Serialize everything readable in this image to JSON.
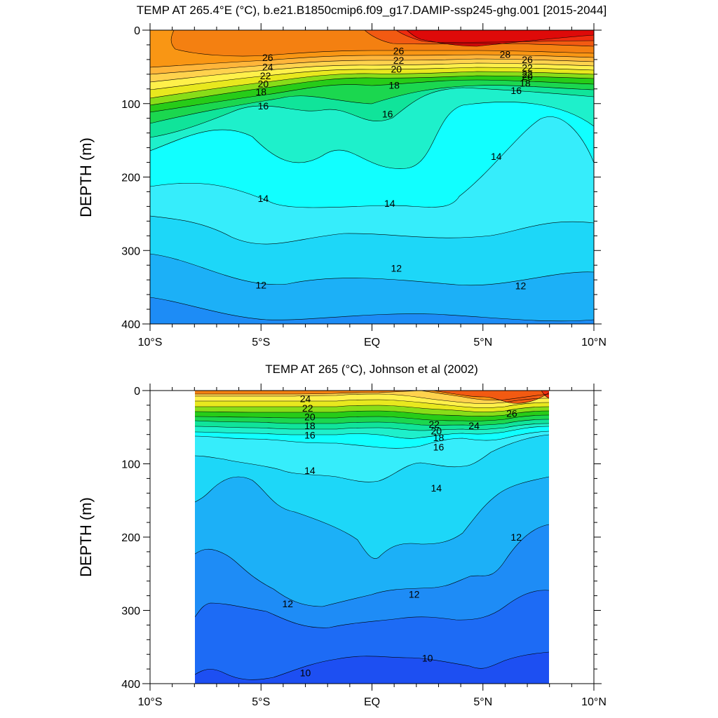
{
  "chart_data": [
    {
      "type": "contour",
      "title": "TEMP AT 265.4°E (°C), b.e21.B1850cmip6.f09_g17.DAMIP-ssp245-ghg.001 [2015-2044]",
      "xlabel": "",
      "ylabel": "DEPTH (m)",
      "xlim": [
        -10,
        10
      ],
      "ylim": [
        400,
        0
      ],
      "x_data_range": [
        -10,
        10
      ],
      "x_ticks": [
        {
          "value": -10,
          "label": "10°S"
        },
        {
          "value": -5,
          "label": "5°S"
        },
        {
          "value": 0,
          "label": "EQ"
        },
        {
          "value": 5,
          "label": "5°N"
        },
        {
          "value": 10,
          "label": "10°N"
        }
      ],
      "y_ticks": [
        {
          "value": 0,
          "label": "0"
        },
        {
          "value": 100,
          "label": "100"
        },
        {
          "value": 200,
          "label": "200"
        },
        {
          "value": 300,
          "label": "300"
        },
        {
          "value": 400,
          "label": "400"
        }
      ],
      "contour_labels": [
        {
          "x": -4.7,
          "y": 37,
          "text": "26"
        },
        {
          "x": -4.7,
          "y": 50,
          "text": "24"
        },
        {
          "x": -4.8,
          "y": 62,
          "text": "22"
        },
        {
          "x": -4.9,
          "y": 73,
          "text": "20"
        },
        {
          "x": -5.0,
          "y": 84,
          "text": "18"
        },
        {
          "x": -4.9,
          "y": 103,
          "text": "16"
        },
        {
          "x": 1.2,
          "y": 28,
          "text": "26"
        },
        {
          "x": 1.2,
          "y": 41,
          "text": "22"
        },
        {
          "x": 1.1,
          "y": 53,
          "text": "20"
        },
        {
          "x": 1.0,
          "y": 75,
          "text": "18"
        },
        {
          "x": 0.7,
          "y": 114,
          "text": "16"
        },
        {
          "x": 6.0,
          "y": 33,
          "text": "28"
        },
        {
          "x": 7.0,
          "y": 40,
          "text": "26"
        },
        {
          "x": 7.0,
          "y": 51,
          "text": "22"
        },
        {
          "x": 7.0,
          "y": 60,
          "text": "22"
        },
        {
          "x": 7.0,
          "y": 63,
          "text": "20"
        },
        {
          "x": 6.9,
          "y": 72,
          "text": "18"
        },
        {
          "x": 6.5,
          "y": 82,
          "text": "16"
        },
        {
          "x": 5.6,
          "y": 172,
          "text": "14"
        },
        {
          "x": -4.9,
          "y": 229,
          "text": "14"
        },
        {
          "x": 0.8,
          "y": 236,
          "text": "14"
        },
        {
          "x": 1.1,
          "y": 324,
          "text": "12"
        },
        {
          "x": -5.0,
          "y": 347,
          "text": "12"
        },
        {
          "x": 6.7,
          "y": 348,
          "text": "12"
        }
      ],
      "description_levels": [
        10,
        11,
        12,
        13,
        14,
        15,
        16,
        17,
        18,
        19,
        20,
        21,
        22,
        23,
        24,
        25,
        26,
        27,
        28
      ]
    },
    {
      "type": "contour",
      "title": "TEMP AT 265 (°C), Johnson et al (2002)",
      "xlabel": "",
      "ylabel": "DEPTH (m)",
      "xlim": [
        -10,
        10
      ],
      "ylim": [
        400,
        0
      ],
      "x_data_range": [
        -8,
        8
      ],
      "x_ticks": [
        {
          "value": -10,
          "label": "10°S"
        },
        {
          "value": -5,
          "label": "5°S"
        },
        {
          "value": 0,
          "label": "EQ"
        },
        {
          "value": 5,
          "label": "5°N"
        },
        {
          "value": 10,
          "label": "10°N"
        }
      ],
      "y_ticks": [
        {
          "value": 0,
          "label": "0"
        },
        {
          "value": 100,
          "label": "100"
        },
        {
          "value": 200,
          "label": "200"
        },
        {
          "value": 300,
          "label": "300"
        },
        {
          "value": 400,
          "label": "400"
        }
      ],
      "contour_labels": [
        {
          "x": -3.0,
          "y": 11,
          "text": "24"
        },
        {
          "x": -2.9,
          "y": 24,
          "text": "22"
        },
        {
          "x": -2.8,
          "y": 36,
          "text": "20"
        },
        {
          "x": -2.8,
          "y": 48,
          "text": "18"
        },
        {
          "x": -2.8,
          "y": 61,
          "text": "16"
        },
        {
          "x": 2.8,
          "y": 46,
          "text": "22"
        },
        {
          "x": 2.9,
          "y": 55,
          "text": "20"
        },
        {
          "x": 3.0,
          "y": 64,
          "text": "18"
        },
        {
          "x": 3.0,
          "y": 77,
          "text": "16"
        },
        {
          "x": 4.6,
          "y": 48,
          "text": "24"
        },
        {
          "x": 6.3,
          "y": 31,
          "text": "26"
        },
        {
          "x": -2.8,
          "y": 109,
          "text": "14"
        },
        {
          "x": 2.9,
          "y": 133,
          "text": "14"
        },
        {
          "x": 6.5,
          "y": 200,
          "text": "12"
        },
        {
          "x": 1.9,
          "y": 278,
          "text": "12"
        },
        {
          "x": -3.8,
          "y": 291,
          "text": "12"
        },
        {
          "x": -3.0,
          "y": 385,
          "text": "10"
        },
        {
          "x": 2.5,
          "y": 365,
          "text": "10"
        }
      ],
      "description_levels": [
        9,
        10,
        11,
        12,
        13,
        14,
        15,
        16,
        17,
        18,
        19,
        20,
        21,
        22,
        23,
        24,
        25,
        26,
        27,
        28
      ]
    }
  ],
  "colors": {
    "levels": [
      9,
      10,
      11,
      12,
      13,
      14,
      15,
      16,
      17,
      18,
      19,
      20,
      21,
      22,
      23,
      24,
      25,
      26,
      27,
      28,
      29
    ],
    "fills": [
      "#1d4ff2",
      "#1d6bf5",
      "#1e8cf6",
      "#1cb0f7",
      "#1dd7f8",
      "#36edfb",
      "#11ffff",
      "#1ef0cb",
      "#10e49a",
      "#1bd74f",
      "#27cc18",
      "#88dd18",
      "#e8e81e",
      "#fff04a",
      "#ffd24d",
      "#ffb53a",
      "#f99614",
      "#f48011",
      "#f25a12",
      "#ef2c0f",
      "#de0a09"
    ]
  }
}
